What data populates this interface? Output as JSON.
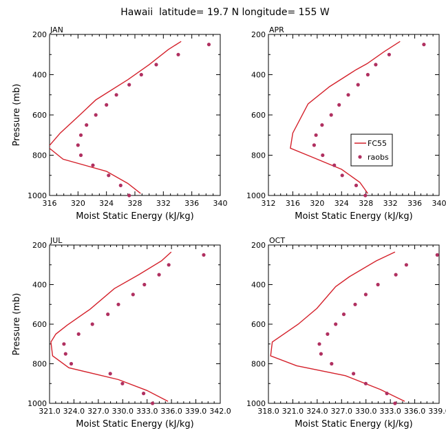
{
  "figure": {
    "title": "Hawaii  latitude= 19.7 N longitude= 155 W"
  },
  "chart_data": [
    {
      "type": "line",
      "panel_label": "JAN",
      "xlabel": "Moist Static Energy (kJ/kg)",
      "ylabel": "Pressure (mb)",
      "xlim": [
        316,
        340
      ],
      "ylim": [
        1000,
        200
      ],
      "xticks": [
        316,
        320,
        324,
        328,
        332,
        336,
        340
      ],
      "xtick_labels": [
        "316",
        "320",
        "324",
        "328",
        "332",
        "336",
        "340"
      ],
      "yticks": [
        200,
        400,
        600,
        800,
        1000
      ],
      "ytick_labels": [
        "200",
        "400",
        "600",
        "800",
        "1000"
      ],
      "legend": null,
      "series": [
        {
          "name": "FC55",
          "kind": "line",
          "color": "#d4202a",
          "x": [
            334.5,
            332.7,
            330.0,
            327.0,
            322.5,
            320.1,
            317.5,
            315.8,
            317.9,
            324.0,
            327.0,
            328.8
          ],
          "y": [
            235,
            275,
            350,
            425,
            525,
            605,
            690,
            760,
            820,
            880,
            940,
            990
          ]
        },
        {
          "name": "raobs",
          "kind": "scatter",
          "color": "#b03060",
          "x": [
            338.4,
            334.1,
            331.0,
            328.9,
            327.2,
            325.4,
            324.0,
            322.5,
            321.2,
            320.4,
            320.0,
            320.4,
            322.1,
            324.3,
            326.0,
            327.2
          ],
          "y": [
            250,
            300,
            350,
            400,
            450,
            500,
            550,
            600,
            650,
            700,
            750,
            800,
            850,
            900,
            950,
            1000
          ]
        }
      ]
    },
    {
      "type": "line",
      "panel_label": "APR",
      "xlabel": "Moist Static Energy (kJ/kg)",
      "ylabel": "",
      "xlim": [
        312,
        340
      ],
      "ylim": [
        1000,
        200
      ],
      "xticks": [
        312,
        316,
        320,
        324,
        328,
        332,
        336,
        340
      ],
      "xtick_labels": [
        "312",
        "316",
        "320",
        "324",
        "328",
        "332",
        "336",
        "340"
      ],
      "yticks": [
        200,
        400,
        600,
        800,
        1000
      ],
      "ytick_labels": [
        "200",
        "400",
        "600",
        "800",
        "1000"
      ],
      "legend": {
        "placement": "right",
        "entries": [
          "FC55",
          "raobs"
        ]
      },
      "series": [
        {
          "name": "FC55",
          "kind": "line",
          "color": "#d4202a",
          "x": [
            333.6,
            331.0,
            328.2,
            326.4,
            322.0,
            318.5,
            316.0,
            315.6,
            319.2,
            324.0,
            327.0,
            328.3
          ],
          "y": [
            235,
            285,
            345,
            375,
            460,
            545,
            690,
            765,
            810,
            870,
            935,
            990
          ]
        },
        {
          "name": "raobs",
          "kind": "scatter",
          "color": "#b03060",
          "x": [
            337.5,
            331.8,
            329.6,
            328.3,
            326.7,
            325.1,
            323.6,
            322.3,
            320.8,
            319.8,
            319.5,
            320.9,
            322.8,
            324.1,
            326.4,
            327.9
          ],
          "y": [
            250,
            300,
            350,
            400,
            450,
            500,
            550,
            600,
            650,
            700,
            750,
            800,
            850,
            900,
            950,
            1000
          ]
        }
      ]
    },
    {
      "type": "line",
      "panel_label": "JUL",
      "xlabel": "Moist Static Energy (kJ/kg)",
      "ylabel": "Pressure (mb)",
      "xlim": [
        321.03,
        342.03
      ],
      "ylim": [
        1000,
        200
      ],
      "xticks": [
        321.03,
        324.03,
        327.03,
        330.03,
        333.03,
        336.03,
        339.03,
        342.03
      ],
      "xtick_labels": [
        "321.0",
        "324.0",
        "327.0",
        "330.0",
        "333.0",
        "336.0",
        "339.0",
        "342.0"
      ],
      "yticks": [
        200,
        400,
        600,
        800,
        1000
      ],
      "ytick_labels": [
        "200",
        "400",
        "600",
        "800",
        "1000"
      ],
      "legend": null,
      "series": [
        {
          "name": "FC55",
          "kind": "line",
          "color": "#d4202a",
          "x": [
            336.0,
            334.8,
            332.0,
            329.0,
            326.0,
            323.2,
            321.8,
            321.2,
            321.4,
            323.4,
            329.5,
            333.0,
            335.6
          ],
          "y": [
            235,
            280,
            350,
            420,
            525,
            605,
            650,
            690,
            760,
            820,
            880,
            935,
            990
          ]
        },
        {
          "name": "raobs",
          "kind": "scatter",
          "color": "#b03060",
          "x": [
            340.0,
            335.7,
            334.5,
            332.7,
            331.3,
            329.5,
            328.2,
            326.3,
            324.6,
            322.8,
            323.0,
            323.7,
            328.5,
            330.0,
            332.6,
            333.7
          ],
          "y": [
            250,
            300,
            350,
            400,
            450,
            500,
            550,
            600,
            650,
            700,
            750,
            800,
            850,
            900,
            950,
            1000
          ]
        }
      ]
    },
    {
      "type": "line",
      "panel_label": "OCT",
      "xlabel": "Moist Static Energy (kJ/kg)",
      "ylabel": "",
      "xlim": [
        318.03,
        339.03
      ],
      "ylim": [
        1000,
        200
      ],
      "xticks": [
        318.03,
        321.03,
        324.03,
        327.03,
        330.03,
        333.03,
        336.03,
        339.03
      ],
      "xtick_labels": [
        "318.0",
        "321.0",
        "324.0",
        "327.0",
        "330.0",
        "333.0",
        "336.0",
        "339.0"
      ],
      "yticks": [
        200,
        400,
        600,
        800,
        1000
      ],
      "ytick_labels": [
        "200",
        "400",
        "600",
        "800",
        "1000"
      ],
      "legend": null,
      "series": [
        {
          "name": "FC55",
          "kind": "line",
          "color": "#d4202a",
          "x": [
            333.6,
            331.3,
            328.0,
            326.3,
            324.0,
            321.7,
            318.5,
            318.3,
            321.5,
            327.5,
            331.8,
            334.8
          ],
          "y": [
            235,
            280,
            360,
            410,
            520,
            600,
            690,
            760,
            810,
            860,
            930,
            990
          ]
        },
        {
          "name": "raobs",
          "kind": "scatter",
          "color": "#b03060",
          "x": [
            338.8,
            335.0,
            333.7,
            331.5,
            330.0,
            328.7,
            327.3,
            326.3,
            325.3,
            324.3,
            324.5,
            325.8,
            328.5,
            330.0,
            332.6,
            333.6
          ],
          "y": [
            250,
            300,
            350,
            400,
            450,
            500,
            550,
            600,
            650,
            700,
            750,
            800,
            850,
            900,
            950,
            1000
          ]
        }
      ]
    }
  ]
}
